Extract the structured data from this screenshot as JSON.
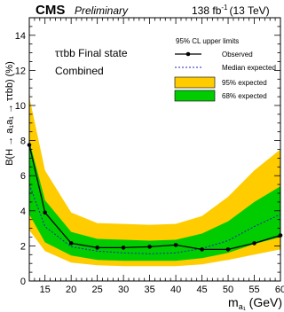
{
  "header": {
    "experiment": "CMS",
    "status": "Preliminary",
    "lumi_value": "138 fb",
    "lumi_exp": "-1",
    "lumi_energy": "(13 TeV)"
  },
  "annotations": {
    "final_state": "ττbb Final state",
    "combination": "Combined"
  },
  "legend": {
    "title": "95% CL upper limits",
    "observed": "Observed",
    "median": "Median expected",
    "band95": "95% expected",
    "band68": "68% expected"
  },
  "axes": {
    "ylabel": "B(H → a₁a₁ → ττbb) (%)",
    "xlabel_main": "m",
    "xlabel_sub": "a₁",
    "xlabel_unit": " (GeV)"
  },
  "colors": {
    "band95": "#ffcc00",
    "band68": "#00cc00",
    "observed": "#000000",
    "median": "#2020c0"
  },
  "chart_data": {
    "type": "line",
    "xlim": [
      12,
      60
    ],
    "ylim": [
      0,
      15
    ],
    "xticks": [
      15,
      20,
      25,
      30,
      35,
      40,
      45,
      50,
      55,
      60
    ],
    "yticks": [
      0,
      2,
      4,
      6,
      8,
      10,
      12,
      14
    ],
    "observed": {
      "x": [
        12,
        15,
        20,
        25,
        30,
        35,
        40,
        45,
        50,
        55,
        60
      ],
      "y": [
        7.75,
        3.9,
        2.15,
        1.9,
        1.9,
        1.95,
        2.05,
        1.8,
        1.8,
        2.15,
        2.6
      ]
    },
    "median_expected": {
      "x": [
        12,
        15,
        20,
        25,
        30,
        35,
        40,
        45,
        50,
        55,
        60
      ],
      "y": [
        5.5,
        3.1,
        1.95,
        1.7,
        1.6,
        1.55,
        1.6,
        1.85,
        2.3,
        3.1,
        3.8
      ]
    },
    "band68": {
      "x": [
        12,
        15,
        20,
        25,
        30,
        35,
        40,
        45,
        50,
        55,
        60
      ],
      "lo": [
        3.8,
        2.2,
        1.45,
        1.2,
        1.15,
        1.15,
        1.15,
        1.3,
        1.6,
        2.1,
        2.5
      ],
      "hi": [
        8.0,
        4.6,
        2.8,
        2.4,
        2.35,
        2.3,
        2.35,
        2.7,
        3.4,
        4.5,
        5.4
      ]
    },
    "band95": {
      "x": [
        12,
        15,
        20,
        25,
        30,
        35,
        40,
        45,
        50,
        55,
        60
      ],
      "lo": [
        2.9,
        1.7,
        1.05,
        0.9,
        0.85,
        0.85,
        0.85,
        0.95,
        1.2,
        1.5,
        1.8
      ],
      "hi": [
        10.5,
        6.3,
        3.9,
        3.3,
        3.25,
        3.2,
        3.25,
        3.7,
        4.8,
        6.3,
        7.5
      ]
    }
  }
}
